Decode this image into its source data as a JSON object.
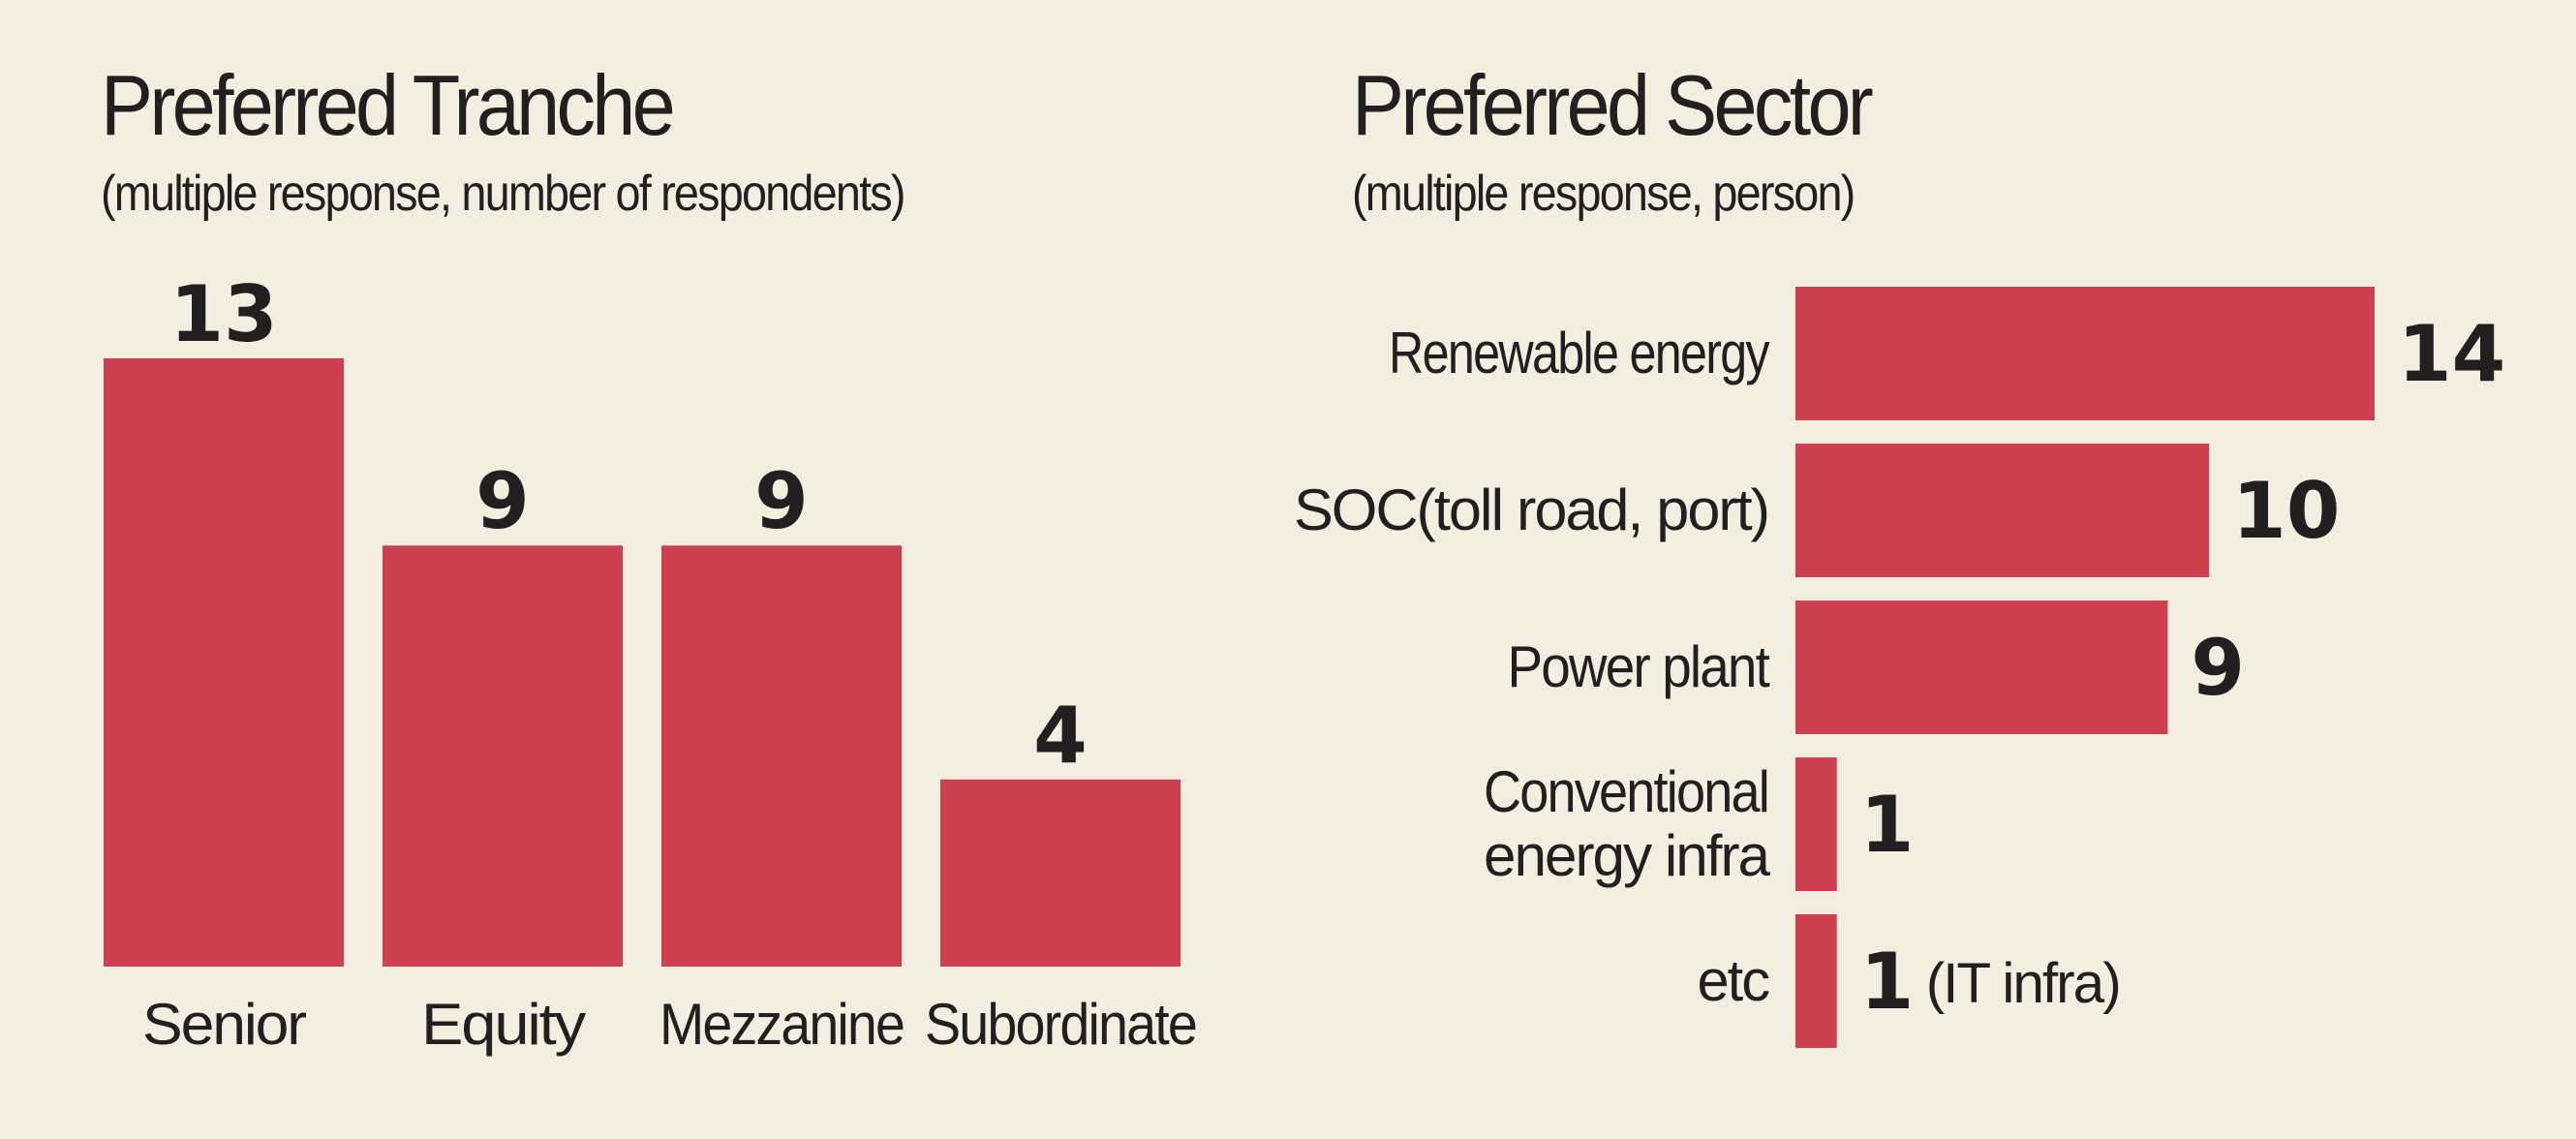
{
  "chart_data": [
    {
      "type": "bar",
      "orientation": "vertical",
      "title": "Preferred Tranche",
      "subtitle": "(multiple response, number of respondents)",
      "categories": [
        "Senior",
        "Equity",
        "Mezzanine",
        "Subordinate"
      ],
      "values": [
        13,
        9,
        9,
        4
      ],
      "data_labels": [
        "13",
        "9",
        "9",
        "4"
      ],
      "grid": false,
      "color": "#cd404f"
    },
    {
      "type": "bar",
      "orientation": "horizontal",
      "title": "Preferred Sector",
      "subtitle": "(multiple response, person)",
      "categories": [
        [
          "Renewable energy"
        ],
        [
          "SOC(toll road, port)"
        ],
        [
          "Power plant"
        ],
        [
          "Conventional",
          "energy infra"
        ],
        [
          "etc"
        ]
      ],
      "values": [
        14,
        10,
        9,
        1,
        1
      ],
      "data_labels": [
        "14",
        "10",
        "9",
        "1",
        "1"
      ],
      "annotations": [
        "",
        "",
        "",
        "",
        "(IT infra)"
      ],
      "grid": false,
      "color": "#cd404f"
    }
  ]
}
